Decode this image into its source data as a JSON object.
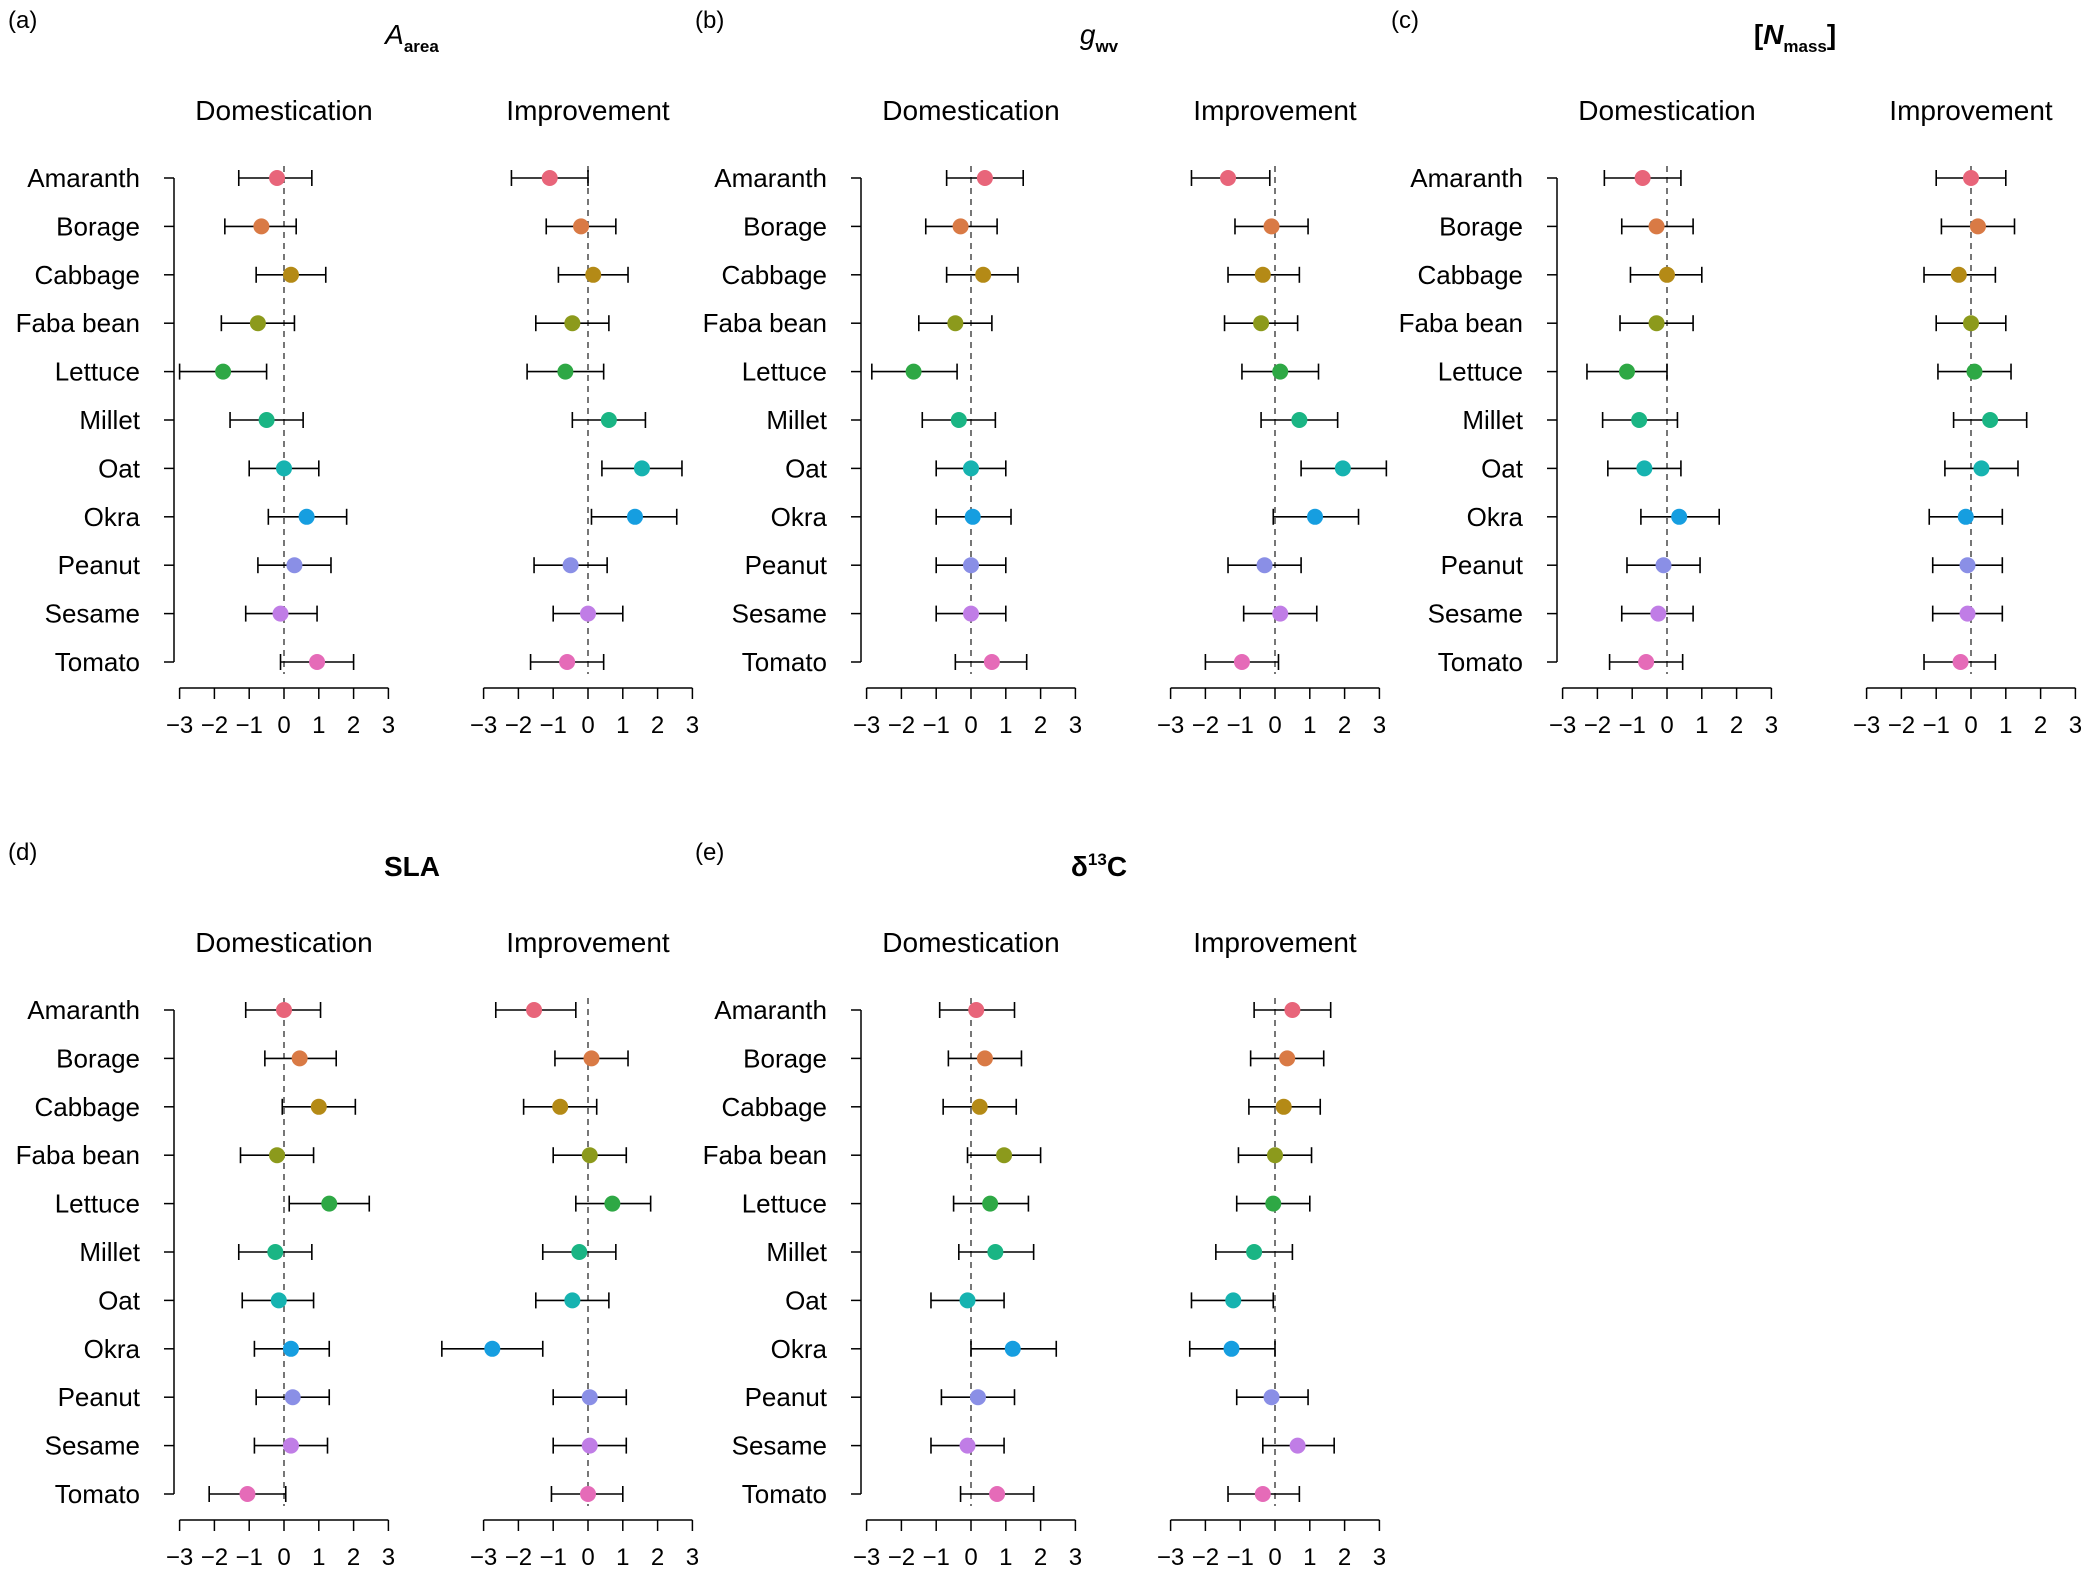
{
  "chart_data": {
    "type": "forest",
    "categories": [
      "Amaranth",
      "Borage",
      "Cabbage",
      "Faba bean",
      "Lettuce",
      "Millet",
      "Oat",
      "Okra",
      "Peanut",
      "Sesame",
      "Tomato"
    ],
    "category_colors": [
      "#e8657a",
      "#d97a45",
      "#b48a16",
      "#8c9a1c",
      "#2ea845",
      "#1ab584",
      "#16b3b0",
      "#169ee0",
      "#8a8fe6",
      "#c07de6",
      "#e56bb8"
    ],
    "xlim": [
      -3,
      3
    ],
    "x_ticks": [
      -3,
      -2,
      -1,
      0,
      1,
      2,
      3
    ],
    "x_tick_labels": [
      "−3",
      "−2",
      "−1",
      "0",
      "1",
      "2",
      "3"
    ],
    "subpanel_titles": {
      "domestication": "Domestication",
      "improvement": "Improvement"
    },
    "panels": [
      {
        "letter": "(a)",
        "title_main": "A",
        "title_sub": "area",
        "title_sup": "",
        "title_style": "italic",
        "domestication": [
          {
            "est": -0.2,
            "lo": -1.3,
            "hi": 0.8
          },
          {
            "est": -0.65,
            "lo": -1.7,
            "hi": 0.35
          },
          {
            "est": 0.2,
            "lo": -0.8,
            "hi": 1.2
          },
          {
            "est": -0.75,
            "lo": -1.8,
            "hi": 0.3
          },
          {
            "est": -1.75,
            "lo": -3.0,
            "hi": -0.5
          },
          {
            "est": -0.5,
            "lo": -1.55,
            "hi": 0.55
          },
          {
            "est": 0.0,
            "lo": -1.0,
            "hi": 1.0
          },
          {
            "est": 0.65,
            "lo": -0.45,
            "hi": 1.8
          },
          {
            "est": 0.3,
            "lo": -0.75,
            "hi": 1.35
          },
          {
            "est": -0.1,
            "lo": -1.1,
            "hi": 0.95
          },
          {
            "est": 0.95,
            "lo": -0.1,
            "hi": 2.0
          }
        ],
        "improvement": [
          {
            "est": -1.1,
            "lo": -2.2,
            "hi": 0.0
          },
          {
            "est": -0.2,
            "lo": -1.2,
            "hi": 0.8
          },
          {
            "est": 0.15,
            "lo": -0.85,
            "hi": 1.15
          },
          {
            "est": -0.45,
            "lo": -1.5,
            "hi": 0.6
          },
          {
            "est": -0.65,
            "lo": -1.75,
            "hi": 0.45
          },
          {
            "est": 0.6,
            "lo": -0.45,
            "hi": 1.65
          },
          {
            "est": 1.55,
            "lo": 0.4,
            "hi": 2.7
          },
          {
            "est": 1.35,
            "lo": 0.1,
            "hi": 2.55
          },
          {
            "est": -0.5,
            "lo": -1.55,
            "hi": 0.55
          },
          {
            "est": 0.0,
            "lo": -1.0,
            "hi": 1.0
          },
          {
            "est": -0.6,
            "lo": -1.65,
            "hi": 0.45
          }
        ]
      },
      {
        "letter": "(b)",
        "title_main": "g",
        "title_sub": "wv",
        "title_sup": "",
        "title_style": "italic",
        "domestication": [
          {
            "est": 0.4,
            "lo": -0.7,
            "hi": 1.5
          },
          {
            "est": -0.3,
            "lo": -1.3,
            "hi": 0.75
          },
          {
            "est": 0.35,
            "lo": -0.7,
            "hi": 1.35
          },
          {
            "est": -0.45,
            "lo": -1.5,
            "hi": 0.6
          },
          {
            "est": -1.65,
            "lo": -2.85,
            "hi": -0.4
          },
          {
            "est": -0.35,
            "lo": -1.4,
            "hi": 0.7
          },
          {
            "est": 0.0,
            "lo": -1.0,
            "hi": 1.0
          },
          {
            "est": 0.05,
            "lo": -1.0,
            "hi": 1.15
          },
          {
            "est": 0.0,
            "lo": -1.0,
            "hi": 1.0
          },
          {
            "est": 0.0,
            "lo": -1.0,
            "hi": 1.0
          },
          {
            "est": 0.6,
            "lo": -0.45,
            "hi": 1.6
          }
        ],
        "improvement": [
          {
            "est": -1.35,
            "lo": -2.4,
            "hi": -0.15
          },
          {
            "est": -0.1,
            "lo": -1.15,
            "hi": 0.95
          },
          {
            "est": -0.35,
            "lo": -1.35,
            "hi": 0.7
          },
          {
            "est": -0.4,
            "lo": -1.45,
            "hi": 0.65
          },
          {
            "est": 0.15,
            "lo": -0.95,
            "hi": 1.25
          },
          {
            "est": 0.7,
            "lo": -0.4,
            "hi": 1.8
          },
          {
            "est": 1.95,
            "lo": 0.75,
            "hi": 3.2
          },
          {
            "est": 1.15,
            "lo": -0.05,
            "hi": 2.4
          },
          {
            "est": -0.3,
            "lo": -1.35,
            "hi": 0.75
          },
          {
            "est": 0.15,
            "lo": -0.9,
            "hi": 1.2
          },
          {
            "est": -0.95,
            "lo": -2.0,
            "hi": 0.1
          }
        ]
      },
      {
        "letter": "(c)",
        "title_main": "N",
        "title_sub": "mass",
        "title_sup": "",
        "title_style": "bracket-italic",
        "domestication": [
          {
            "est": -0.7,
            "lo": -1.8,
            "hi": 0.4
          },
          {
            "est": -0.3,
            "lo": -1.3,
            "hi": 0.75
          },
          {
            "est": 0.0,
            "lo": -1.05,
            "hi": 1.0
          },
          {
            "est": -0.3,
            "lo": -1.35,
            "hi": 0.75
          },
          {
            "est": -1.15,
            "lo": -2.3,
            "hi": 0.0
          },
          {
            "est": -0.8,
            "lo": -1.85,
            "hi": 0.3
          },
          {
            "est": -0.65,
            "lo": -1.7,
            "hi": 0.4
          },
          {
            "est": 0.35,
            "lo": -0.75,
            "hi": 1.5
          },
          {
            "est": -0.1,
            "lo": -1.15,
            "hi": 0.95
          },
          {
            "est": -0.25,
            "lo": -1.3,
            "hi": 0.75
          },
          {
            "est": -0.6,
            "lo": -1.65,
            "hi": 0.45
          }
        ],
        "improvement": [
          {
            "est": 0.0,
            "lo": -1.0,
            "hi": 1.0
          },
          {
            "est": 0.2,
            "lo": -0.85,
            "hi": 1.25
          },
          {
            "est": -0.35,
            "lo": -1.35,
            "hi": 0.7
          },
          {
            "est": 0.0,
            "lo": -1.0,
            "hi": 1.0
          },
          {
            "est": 0.1,
            "lo": -0.95,
            "hi": 1.15
          },
          {
            "est": 0.55,
            "lo": -0.5,
            "hi": 1.6
          },
          {
            "est": 0.3,
            "lo": -0.75,
            "hi": 1.35
          },
          {
            "est": -0.15,
            "lo": -1.2,
            "hi": 0.9
          },
          {
            "est": -0.1,
            "lo": -1.1,
            "hi": 0.9
          },
          {
            "est": -0.1,
            "lo": -1.1,
            "hi": 0.9
          },
          {
            "est": -0.3,
            "lo": -1.35,
            "hi": 0.7
          }
        ]
      },
      {
        "letter": "(d)",
        "title_main": "SLA",
        "title_sub": "",
        "title_sup": "",
        "title_style": "bold",
        "domestication": [
          {
            "est": 0.0,
            "lo": -1.1,
            "hi": 1.05
          },
          {
            "est": 0.45,
            "lo": -0.55,
            "hi": 1.5
          },
          {
            "est": 1.0,
            "lo": -0.05,
            "hi": 2.05
          },
          {
            "est": -0.2,
            "lo": -1.25,
            "hi": 0.85
          },
          {
            "est": 1.3,
            "lo": 0.15,
            "hi": 2.45
          },
          {
            "est": -0.25,
            "lo": -1.3,
            "hi": 0.8
          },
          {
            "est": -0.15,
            "lo": -1.2,
            "hi": 0.85
          },
          {
            "est": 0.2,
            "lo": -0.85,
            "hi": 1.3
          },
          {
            "est": 0.25,
            "lo": -0.8,
            "hi": 1.3
          },
          {
            "est": 0.2,
            "lo": -0.85,
            "hi": 1.25
          },
          {
            "est": -1.05,
            "lo": -2.15,
            "hi": 0.05
          }
        ],
        "improvement": [
          {
            "est": -1.55,
            "lo": -2.65,
            "hi": -0.35
          },
          {
            "est": 0.1,
            "lo": -0.95,
            "hi": 1.15
          },
          {
            "est": -0.8,
            "lo": -1.85,
            "hi": 0.25
          },
          {
            "est": 0.05,
            "lo": -1.0,
            "hi": 1.1
          },
          {
            "est": 0.7,
            "lo": -0.35,
            "hi": 1.8
          },
          {
            "est": -0.25,
            "lo": -1.3,
            "hi": 0.8
          },
          {
            "est": -0.45,
            "lo": -1.5,
            "hi": 0.6
          },
          {
            "est": -2.75,
            "lo": -4.2,
            "hi": -1.3
          },
          {
            "est": 0.05,
            "lo": -1.0,
            "hi": 1.1
          },
          {
            "est": 0.05,
            "lo": -1.0,
            "hi": 1.1
          },
          {
            "est": 0.0,
            "lo": -1.05,
            "hi": 1.0
          }
        ]
      },
      {
        "letter": "(e)",
        "title_main": "δ",
        "title_sub": "",
        "title_sup": "13",
        "title_suffix": "C",
        "title_style": "bold",
        "domestication": [
          {
            "est": 0.15,
            "lo": -0.9,
            "hi": 1.25
          },
          {
            "est": 0.4,
            "lo": -0.65,
            "hi": 1.45
          },
          {
            "est": 0.25,
            "lo": -0.8,
            "hi": 1.3
          },
          {
            "est": 0.95,
            "lo": -0.1,
            "hi": 2.0
          },
          {
            "est": 0.55,
            "lo": -0.5,
            "hi": 1.65
          },
          {
            "est": 0.7,
            "lo": -0.35,
            "hi": 1.8
          },
          {
            "est": -0.1,
            "lo": -1.15,
            "hi": 0.95
          },
          {
            "est": 1.2,
            "lo": 0.0,
            "hi": 2.45
          },
          {
            "est": 0.2,
            "lo": -0.85,
            "hi": 1.25
          },
          {
            "est": -0.1,
            "lo": -1.15,
            "hi": 0.95
          },
          {
            "est": 0.75,
            "lo": -0.3,
            "hi": 1.8
          }
        ],
        "improvement": [
          {
            "est": 0.5,
            "lo": -0.6,
            "hi": 1.6
          },
          {
            "est": 0.35,
            "lo": -0.7,
            "hi": 1.4
          },
          {
            "est": 0.25,
            "lo": -0.75,
            "hi": 1.3
          },
          {
            "est": 0.0,
            "lo": -1.05,
            "hi": 1.05
          },
          {
            "est": -0.05,
            "lo": -1.1,
            "hi": 1.0
          },
          {
            "est": -0.6,
            "lo": -1.7,
            "hi": 0.5
          },
          {
            "est": -1.2,
            "lo": -2.4,
            "hi": -0.05
          },
          {
            "est": -1.25,
            "lo": -2.45,
            "hi": 0.0
          },
          {
            "est": -0.1,
            "lo": -1.1,
            "hi": 0.95
          },
          {
            "est": 0.65,
            "lo": -0.35,
            "hi": 1.7
          },
          {
            "est": -0.35,
            "lo": -1.35,
            "hi": 0.7
          }
        ]
      }
    ]
  }
}
